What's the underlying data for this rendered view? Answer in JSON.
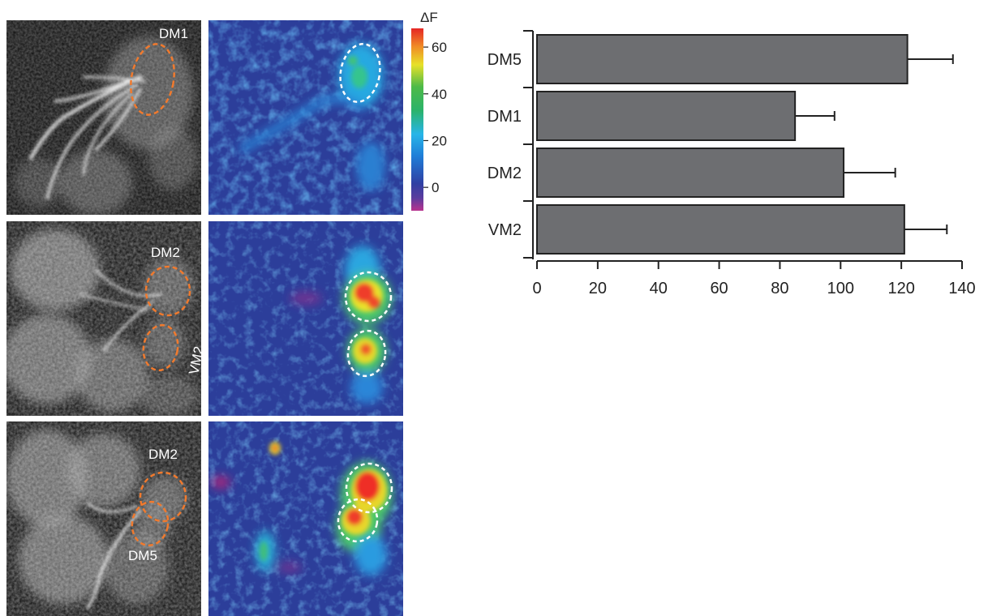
{
  "panels": {
    "row1": {
      "rois": [
        {
          "label": "DM1"
        }
      ]
    },
    "row2": {
      "rois": [
        {
          "label": "DM2"
        },
        {
          "label": "VM2"
        }
      ]
    },
    "row3": {
      "rois": [
        {
          "label": "DM2"
        },
        {
          "label": "DM5"
        }
      ]
    }
  },
  "colorbar": {
    "label": "ΔF",
    "ticks": [
      "60",
      "40",
      "20",
      "0"
    ],
    "tick_values": [
      60,
      40,
      20,
      0
    ],
    "range": [
      -10,
      68
    ]
  },
  "colors": {
    "bar_fill": "#6d6e71",
    "roi_orange": "#f07a2e",
    "roi_white": "#ffffff"
  },
  "chart_data": {
    "type": "bar",
    "orientation": "horizontal",
    "categories": [
      "DM5",
      "DM1",
      "DM2",
      "VM2"
    ],
    "values": [
      122,
      85,
      101,
      121
    ],
    "errors": [
      15,
      13,
      17,
      14
    ],
    "xlim": [
      0,
      140
    ],
    "xticks": [
      0,
      20,
      40,
      60,
      80,
      100,
      120,
      140
    ],
    "title": "",
    "xlabel": "",
    "ylabel": ""
  }
}
